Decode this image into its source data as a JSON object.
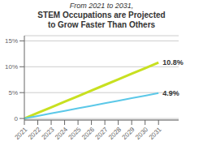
{
  "chart_data": {
    "type": "line",
    "subtitle": "From 2021 to 2031,",
    "title": "STEM Occupations are Projected\nto Grow Faster Than Others",
    "x": [
      2021,
      2022,
      2023,
      2024,
      2025,
      2026,
      2027,
      2028,
      2029,
      2030,
      2031
    ],
    "series": [
      {
        "color": "#c8e020",
        "values": [
          0,
          1.08,
          2.16,
          3.24,
          4.32,
          5.4,
          6.48,
          7.56,
          8.64,
          9.72,
          10.8
        ]
      },
      {
        "color": "#5bc8e8",
        "values": [
          0,
          0.49,
          0.98,
          1.47,
          1.96,
          2.45,
          2.94,
          3.43,
          3.92,
          4.41,
          4.9
        ]
      }
    ],
    "annotations": [
      {
        "text": "10.8%",
        "x": 2031,
        "y": 10.8
      },
      {
        "text": "4.9%",
        "x": 2031,
        "y": 4.9
      }
    ],
    "xlim": [
      2021,
      2032.5
    ],
    "xticks": [
      2021,
      2022,
      2023,
      2024,
      2025,
      2026,
      2027,
      2028,
      2029,
      2030,
      2031
    ],
    "ylim": [
      -0.3,
      16
    ],
    "yticks": [
      0,
      {
        "value": 5,
        "label": "5%"
      },
      {
        "value": 10,
        "label": "10%"
      },
      {
        "value": 15,
        "label": "15%"
      }
    ],
    "grid": "y"
  }
}
